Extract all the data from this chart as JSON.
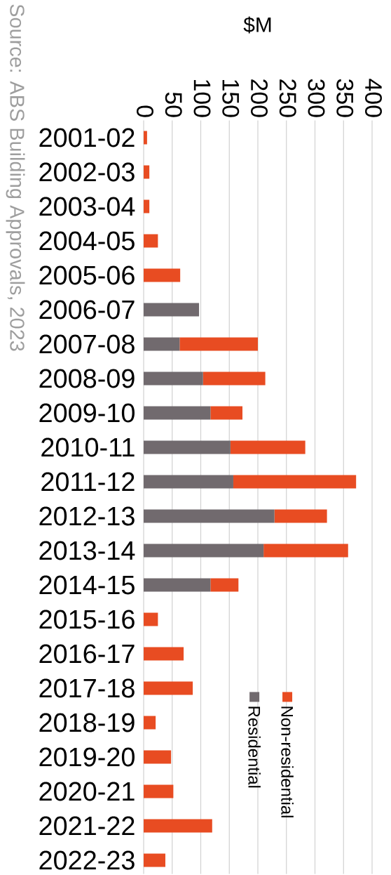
{
  "chart_data": {
    "type": "bar",
    "orientation": "horizontal",
    "stacked": true,
    "xlabel": "$M",
    "categories": [
      "2001-02",
      "2002-03",
      "2003-04",
      "2004-05",
      "2005-06",
      "2006-07",
      "2007-08",
      "2008-09",
      "2009-10",
      "2010-11",
      "2011-12",
      "2012-13",
      "2013-14",
      "2014-15",
      "2015-16",
      "2016-17",
      "2017-18",
      "2018-19",
      "2019-20",
      "2020-21",
      "2021-22",
      "2022-23"
    ],
    "series": [
      {
        "name": "Residential",
        "color": "#716a6e",
        "values": [
          0,
          0,
          0,
          0,
          0,
          97,
          63,
          104,
          117,
          152,
          157,
          229,
          210,
          117,
          0,
          0,
          0,
          0,
          0,
          0,
          0,
          0
        ]
      },
      {
        "name": "Non-residential",
        "color": "#e84c22",
        "values": [
          6,
          10,
          10,
          25,
          64,
          0,
          137,
          109,
          56,
          131,
          215,
          92,
          148,
          49,
          25,
          70,
          86,
          21,
          48,
          52,
          120,
          38
        ]
      }
    ],
    "xlim": [
      0,
      400
    ],
    "xticks": [
      0,
      50,
      100,
      150,
      200,
      250,
      300,
      350,
      400
    ],
    "grid": "x",
    "legend": "bottom right",
    "annotations": [
      "Source: ABS Building Approvals, 2023"
    ]
  }
}
